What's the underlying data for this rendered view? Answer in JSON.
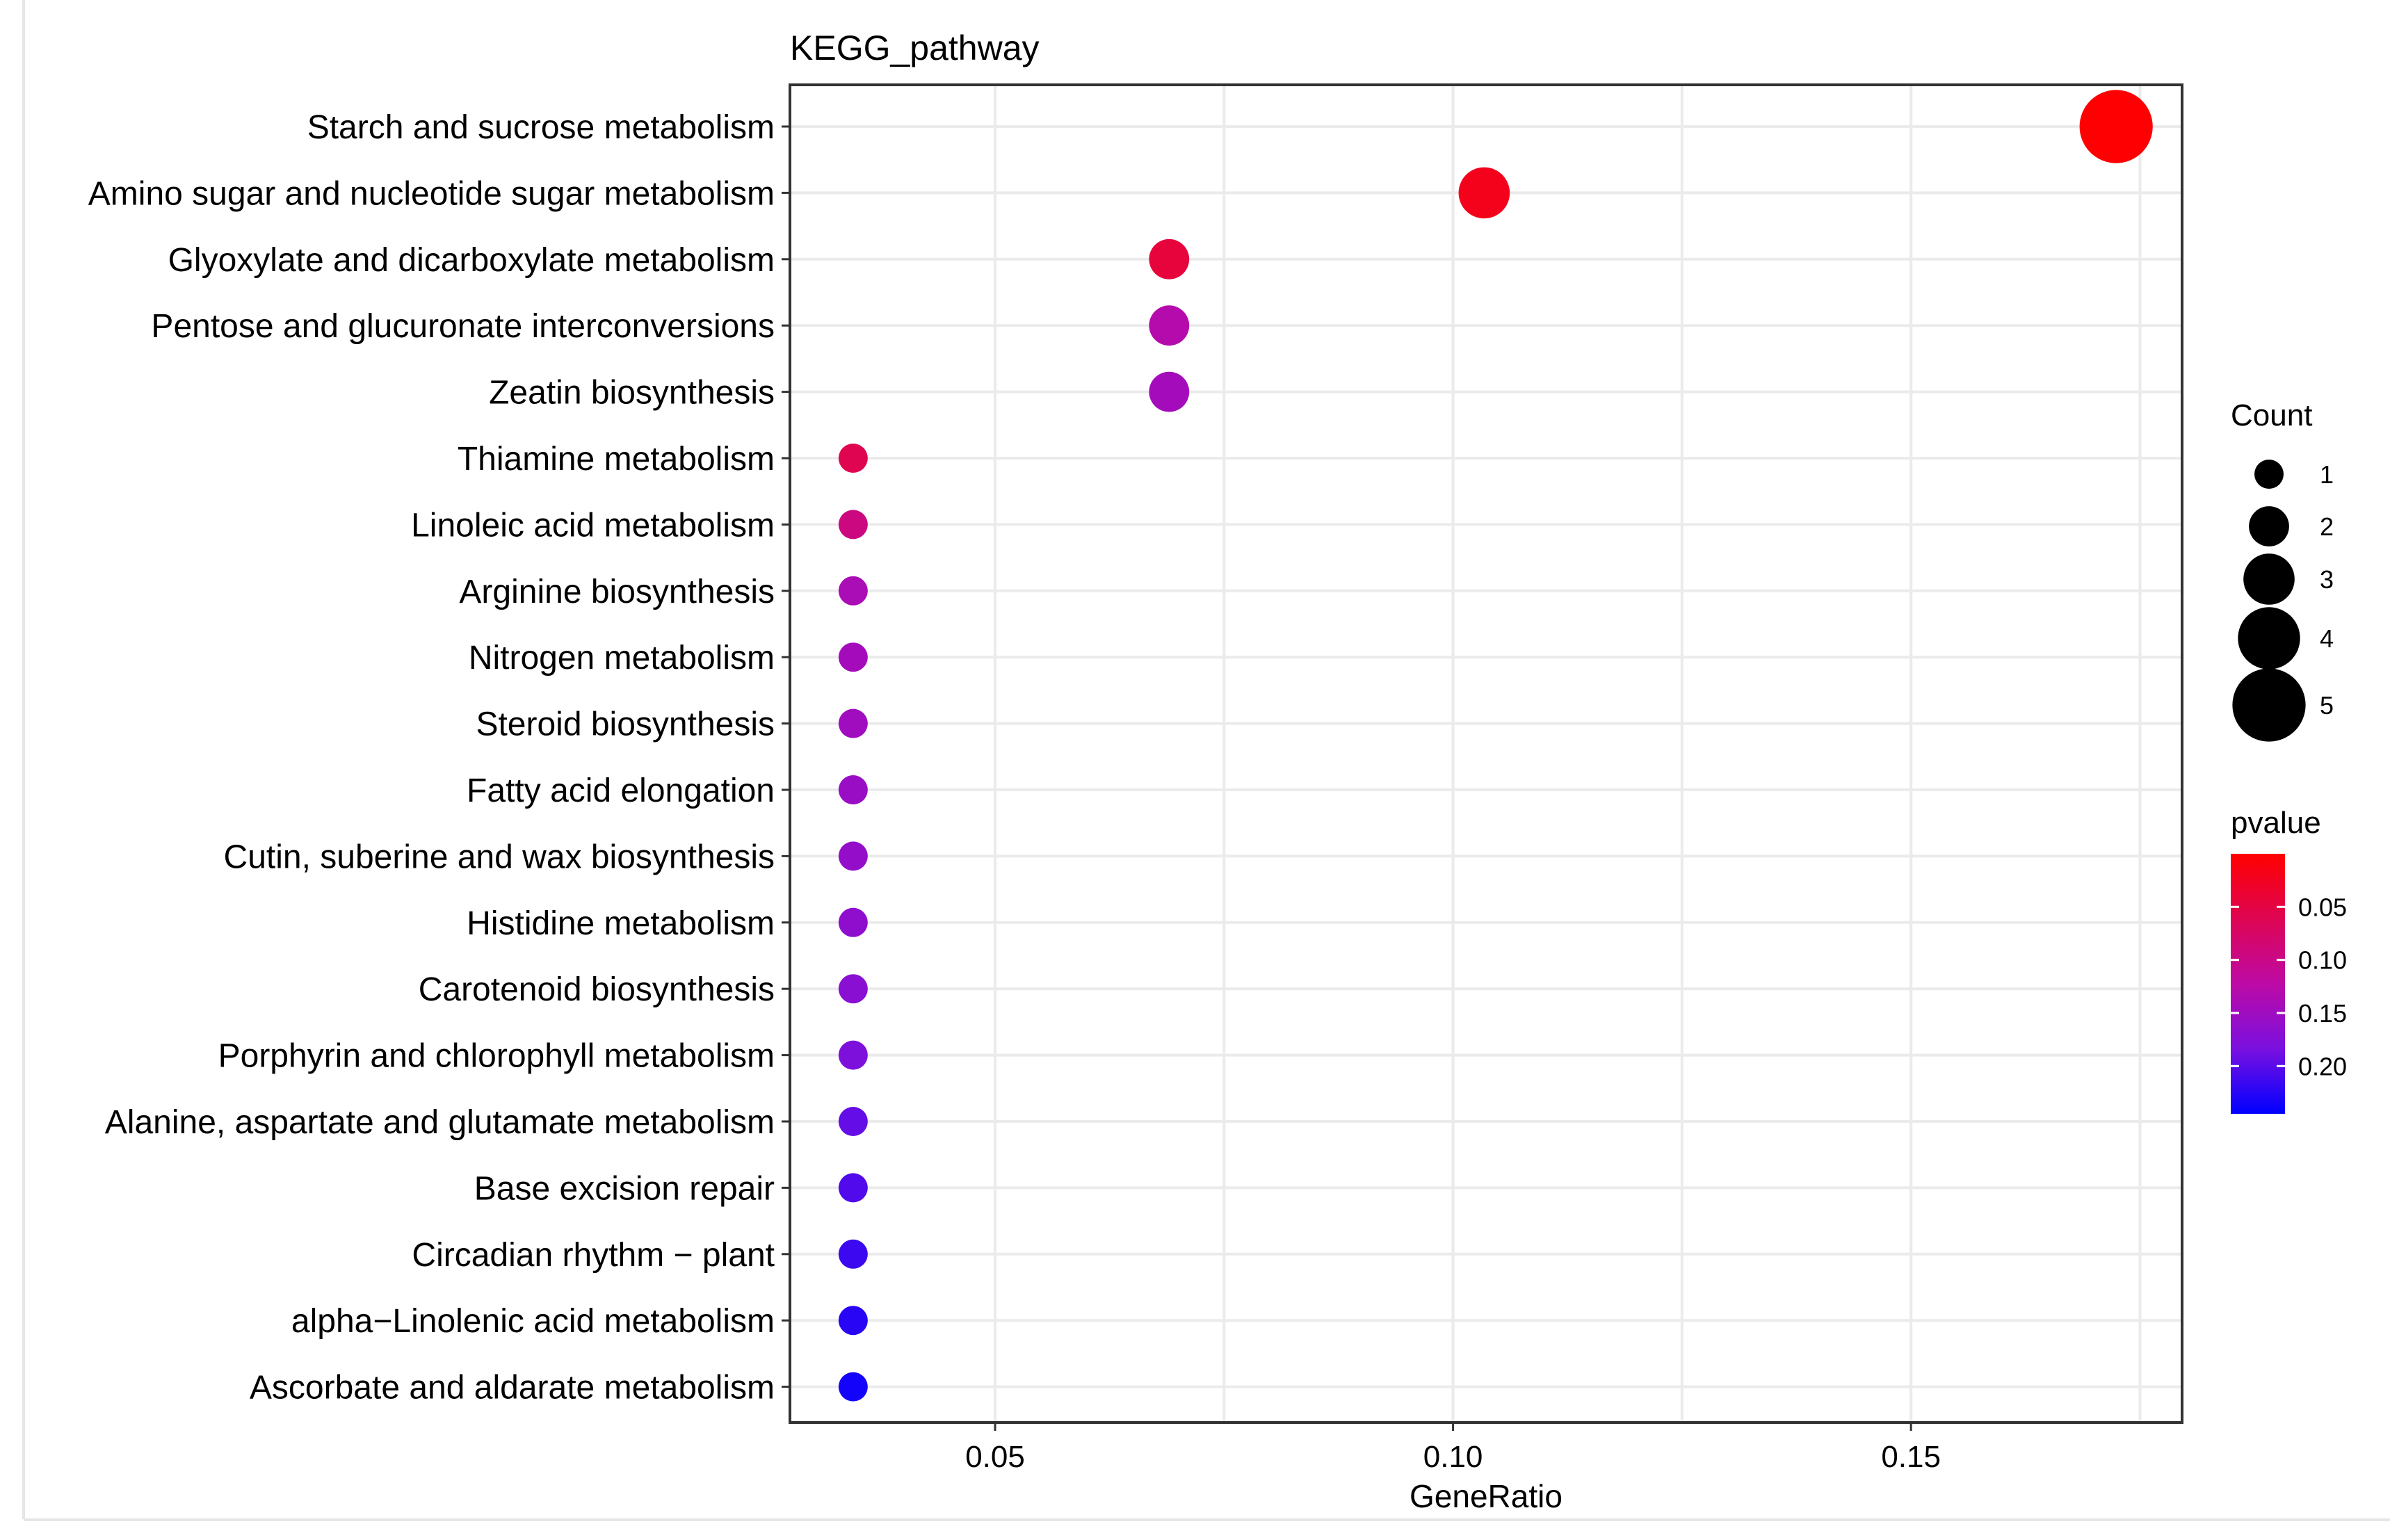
{
  "chart_data": {
    "type": "scatter",
    "title": "KEGG_pathway",
    "xlabel": "GeneRatio",
    "ylabel": "",
    "xlim": [
      0.0276,
      0.1796
    ],
    "xticks": [
      0.05,
      0.1,
      0.15
    ],
    "xtick_labels": [
      "0.05",
      "0.10",
      "0.15"
    ],
    "grid": true,
    "points": [
      {
        "term": "Starch and sucrose metabolism",
        "gene_ratio": 0.1724,
        "count": 5,
        "pvalue": 0.001
      },
      {
        "term": "Amino sugar and nucleotide sugar metabolism",
        "gene_ratio": 0.1034,
        "count": 3,
        "pvalue": 0.02
      },
      {
        "term": "Glyoxylate and dicarboxylate metabolism",
        "gene_ratio": 0.069,
        "count": 2,
        "pvalue": 0.045
      },
      {
        "term": "Pentose and glucuronate interconversions",
        "gene_ratio": 0.069,
        "count": 2,
        "pvalue": 0.13
      },
      {
        "term": "Zeatin biosynthesis",
        "gene_ratio": 0.069,
        "count": 2,
        "pvalue": 0.145
      },
      {
        "term": "Thiamine metabolism",
        "gene_ratio": 0.0345,
        "count": 1,
        "pvalue": 0.06
      },
      {
        "term": "Linoleic acid metabolism",
        "gene_ratio": 0.0345,
        "count": 1,
        "pvalue": 0.095
      },
      {
        "term": "Arginine biosynthesis",
        "gene_ratio": 0.0345,
        "count": 1,
        "pvalue": 0.14
      },
      {
        "term": "Nitrogen metabolism",
        "gene_ratio": 0.0345,
        "count": 1,
        "pvalue": 0.145
      },
      {
        "term": "Steroid biosynthesis",
        "gene_ratio": 0.0345,
        "count": 1,
        "pvalue": 0.15
      },
      {
        "term": "Fatty acid elongation",
        "gene_ratio": 0.0345,
        "count": 1,
        "pvalue": 0.155
      },
      {
        "term": "Cutin, suberine and wax biosynthesis",
        "gene_ratio": 0.0345,
        "count": 1,
        "pvalue": 0.16
      },
      {
        "term": "Histidine metabolism",
        "gene_ratio": 0.0345,
        "count": 1,
        "pvalue": 0.165
      },
      {
        "term": "Carotenoid biosynthesis",
        "gene_ratio": 0.0345,
        "count": 1,
        "pvalue": 0.17
      },
      {
        "term": "Porphyrin and chlorophyll metabolism",
        "gene_ratio": 0.0345,
        "count": 1,
        "pvalue": 0.18
      },
      {
        "term": "Alanine, aspartate and glutamate metabolism",
        "gene_ratio": 0.0345,
        "count": 1,
        "pvalue": 0.195
      },
      {
        "term": "Base excision repair",
        "gene_ratio": 0.0345,
        "count": 1,
        "pvalue": 0.205
      },
      {
        "term": "Circadian rhythm − plant",
        "gene_ratio": 0.0345,
        "count": 1,
        "pvalue": 0.215
      },
      {
        "term": "alpha−Linolenic acid metabolism",
        "gene_ratio": 0.0345,
        "count": 1,
        "pvalue": 0.225
      },
      {
        "term": "Ascorbate and aldarate metabolism",
        "gene_ratio": 0.0345,
        "count": 1,
        "pvalue": 0.235
      }
    ],
    "size_legend": {
      "title": "Count",
      "values": [
        1,
        2,
        3,
        4,
        5
      ],
      "labels": [
        "1",
        "2",
        "3",
        "4",
        "5"
      ]
    },
    "color_legend": {
      "title": "pvalue",
      "range": [
        0.0,
        0.245
      ],
      "ticks": [
        0.05,
        0.1,
        0.15,
        0.2
      ],
      "tick_labels": [
        "0.05",
        "0.10",
        "0.15",
        "0.20"
      ],
      "low_color": "#ff0000",
      "high_color": "#0000ff"
    }
  }
}
